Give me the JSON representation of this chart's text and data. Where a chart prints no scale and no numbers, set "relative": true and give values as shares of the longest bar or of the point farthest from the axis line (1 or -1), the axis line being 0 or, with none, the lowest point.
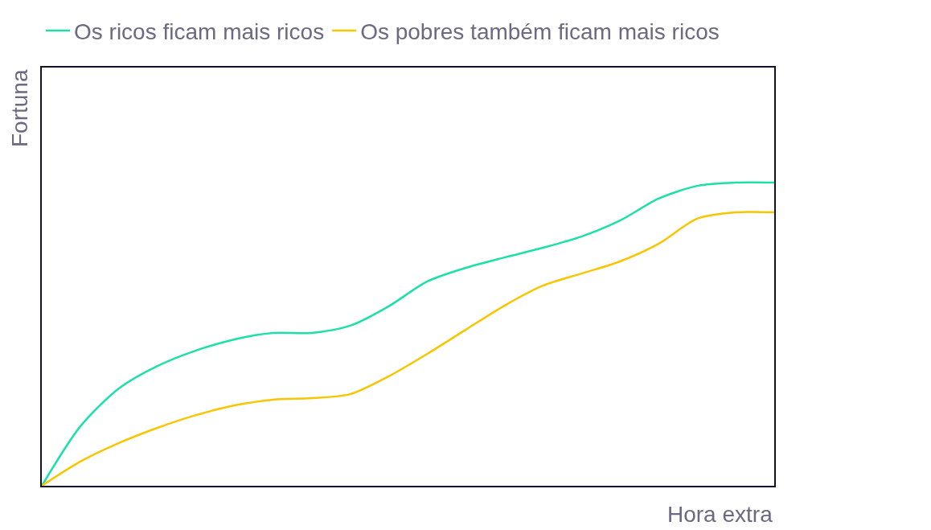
{
  "chart_data": {
    "type": "line",
    "relative": true,
    "xlabel": "Hora extra",
    "ylabel": "Fortuna",
    "legend": "top left",
    "marker": "none",
    "line_style": "solid",
    "categories": [
      null,
      null,
      null,
      null,
      null,
      null,
      null,
      null,
      null,
      null,
      null,
      null,
      null,
      null,
      null,
      null,
      null,
      null,
      null,
      null
    ],
    "series": [
      {
        "name": "Os ricos ficam mais ricos",
        "color": "#1de0a8",
        "values": [
          0,
          0.196,
          0.321,
          0.395,
          0.446,
          0.483,
          0.504,
          0.504,
          0.528,
          0.592,
          0.674,
          0.719,
          0.753,
          0.785,
          0.822,
          0.875,
          0.947,
          0.989,
          1,
          1
        ]
      },
      {
        "name": "Os pobres também ficam mais ricos",
        "color": "#f7c600",
        "values": [
          0,
          0.08,
          0.141,
          0.191,
          0.233,
          0.265,
          0.284,
          0.289,
          0.302,
          0.361,
          0.435,
          0.515,
          0.594,
          0.66,
          0.7,
          0.74,
          0.798,
          0.881,
          0.902,
          0.902
        ]
      }
    ]
  }
}
